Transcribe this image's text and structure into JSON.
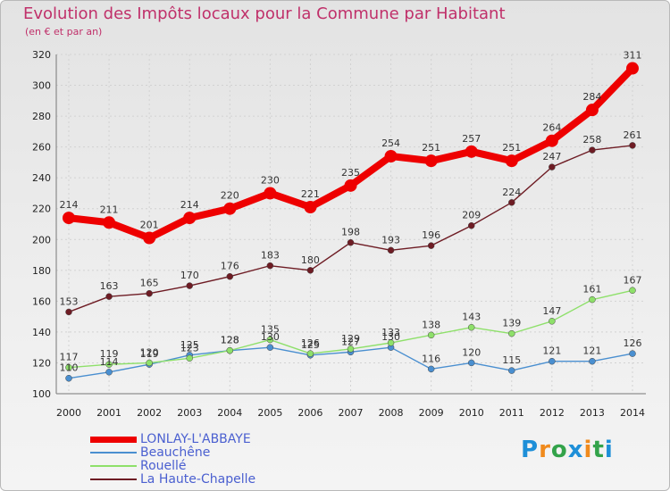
{
  "header": {
    "title": "Evolution des Impôts locaux pour la Commune par Habitant",
    "subtitle": "(en € et par an)"
  },
  "logo": {
    "text": "Proxiti",
    "colors": [
      "#1e8fd8",
      "#f08a1c",
      "#33a34a",
      "#1e8fd8",
      "#f08a1c",
      "#33a34a",
      "#1e8fd8"
    ]
  },
  "chart_data": {
    "type": "line",
    "title": "Evolution des Impôts locaux pour la Commune par Habitant",
    "subtitle": "(en € et par an)",
    "xlabel": "",
    "ylabel": "",
    "x": [
      2000,
      2001,
      2002,
      2003,
      2004,
      2005,
      2006,
      2007,
      2008,
      2009,
      2010,
      2011,
      2012,
      2013,
      2014
    ],
    "ylim": [
      100,
      320
    ],
    "yticks": [
      100,
      120,
      140,
      160,
      180,
      200,
      220,
      240,
      260,
      280,
      300,
      320
    ],
    "grid": true,
    "legend_position": "bottom-left",
    "series": [
      {
        "name": "LONLAY-L'ABBAYE",
        "color": "#ee0000",
        "values": [
          214,
          211,
          201,
          214,
          220,
          230,
          221,
          235,
          254,
          251,
          257,
          251,
          264,
          284,
          311
        ]
      },
      {
        "name": "Beauchêne",
        "color": "#4a8fd0",
        "values": [
          110,
          114,
          119,
          125,
          128,
          130,
          125,
          127,
          130,
          116,
          120,
          115,
          121,
          121,
          126
        ]
      },
      {
        "name": "Rouellé",
        "color": "#8ee06a",
        "values": [
          117,
          119,
          120,
          123,
          128,
          135,
          126,
          129,
          133,
          138,
          143,
          139,
          147,
          161,
          167
        ]
      },
      {
        "name": "La Haute-Chapelle",
        "color": "#6e1c24",
        "values": [
          153,
          163,
          165,
          170,
          176,
          183,
          180,
          198,
          193,
          196,
          209,
          224,
          247,
          258,
          261
        ]
      }
    ]
  }
}
